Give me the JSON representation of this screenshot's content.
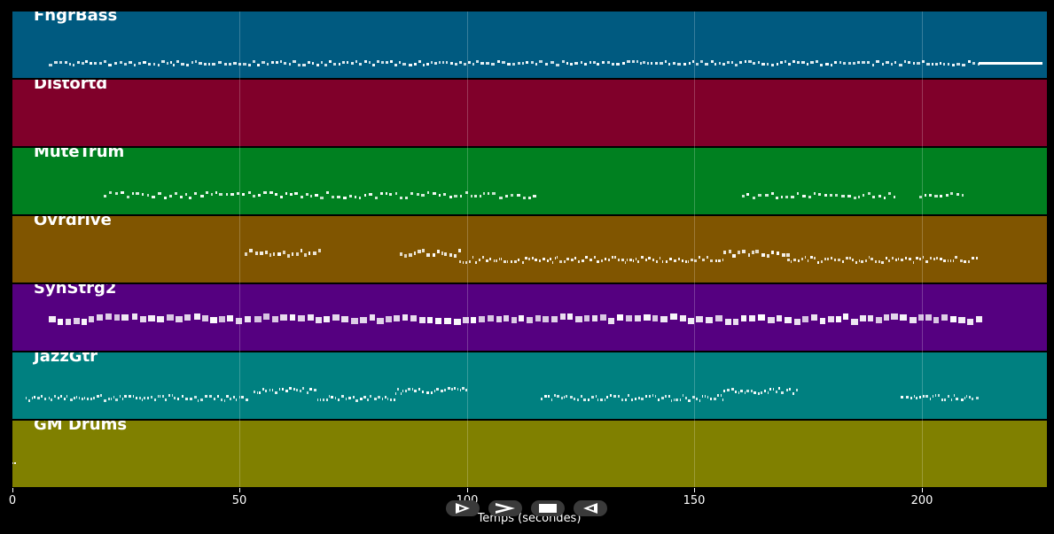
{
  "app": {
    "xlabel": "Temps (secondes)"
  },
  "axis": {
    "x_min": 0,
    "x_max": 227,
    "ticks": [
      {
        "value": 0,
        "label": "0"
      },
      {
        "value": 50,
        "label": "50"
      },
      {
        "value": 100,
        "label": "100"
      },
      {
        "value": 150,
        "label": "150"
      },
      {
        "value": 200,
        "label": "200"
      }
    ]
  },
  "tracks": [
    {
      "name": "FngrBass",
      "color": "#005a80"
    },
    {
      "name": "Distortd",
      "color": "#80002a"
    },
    {
      "name": "MuteTrum",
      "color": "#008020"
    },
    {
      "name": "Ovrdrive",
      "color": "#805500"
    },
    {
      "name": "SynStrg2",
      "color": "#550080"
    },
    {
      "name": "JazzGtr",
      "color": "#008080"
    },
    {
      "name": "GM Drums",
      "color": "#808000"
    }
  ],
  "controls": [
    {
      "icon": "play-icon"
    },
    {
      "icon": "forward-icon"
    },
    {
      "icon": "stop-icon"
    },
    {
      "icon": "rewind-icon"
    }
  ]
}
